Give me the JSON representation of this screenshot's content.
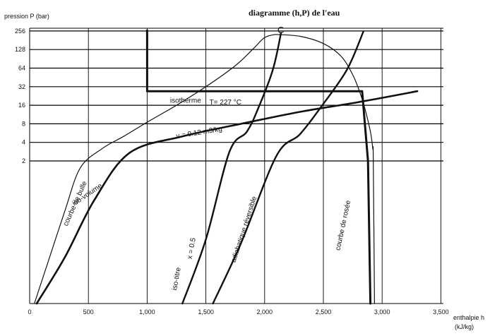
{
  "chart_data": {
    "type": "line",
    "title": "diagramme (h,P) de l'eau",
    "xlabel": "enthalpie  h",
    "xunit": "(kJ/kg)",
    "ylabel": "pression  P (bar)",
    "xlim": [
      0,
      3700
    ],
    "x_ticks": [
      0,
      500,
      1000,
      1500,
      2000,
      2500,
      3000,
      3500
    ],
    "x_tick_labels": [
      "0",
      "500",
      "1,000",
      "1,500",
      "2,000",
      "2,500",
      "3,000",
      "3,500"
    ],
    "y_scale": "log2 above 2 bar; lower part of figure unlabelled",
    "y_ticks": [
      2,
      4,
      8,
      16,
      32,
      64,
      128,
      256
    ],
    "y_tick_labels": [
      "2",
      "4",
      "8",
      "16",
      "32",
      "64",
      "128",
      "256"
    ],
    "grid": true,
    "critical_point_label": "C",
    "series": [
      {
        "name": "courbe de bulle",
        "points": [
          [
            40,
            0
          ],
          [
            150,
            0.55
          ],
          [
            300,
            1.3
          ],
          [
            430,
            1.9
          ],
          [
            620,
            3.2
          ],
          [
            800,
            5
          ],
          [
            1000,
            8.5
          ],
          [
            1250,
            16
          ],
          [
            1500,
            32
          ],
          [
            1750,
            70
          ],
          [
            1900,
            130
          ],
          [
            2000,
            200
          ],
          [
            2090,
            225
          ]
        ],
        "labels": [
          {
            "text": "courbe de bulle",
            "x": 320,
            "y": 1.08,
            "angle": -66
          }
        ]
      },
      {
        "name": "courbe de rosée",
        "points": [
          [
            2090,
            225
          ],
          [
            2300,
            210
          ],
          [
            2500,
            160
          ],
          [
            2650,
            100
          ],
          [
            2750,
            50
          ],
          [
            2810,
            26
          ],
          [
            2850,
            15
          ],
          [
            2900,
            6
          ],
          [
            2920,
            3.2
          ],
          [
            2925,
            2
          ],
          [
            2935,
            0
          ]
        ],
        "labels": [
          {
            "text": "courbe de rosée",
            "x": 2640,
            "y": 0.74,
            "angle": -78
          }
        ]
      },
      {
        "name": "iso-volume",
        "points": [
          [
            60,
            0
          ],
          [
            300,
            0.65
          ],
          [
            550,
            1.45
          ],
          [
            850,
            2.7
          ],
          [
            1300,
            5
          ],
          [
            1800,
            8
          ],
          [
            2300,
            12.5
          ],
          [
            2800,
            18
          ],
          [
            3300,
            27
          ]
        ],
        "labels": [
          {
            "text": "iso-volume",
            "x": 380,
            "y": 1.37,
            "angle": -34
          },
          {
            "text": "v = 0.12 m3/kg",
            "x": 1250,
            "y": 4.66,
            "angle": -9
          }
        ]
      },
      {
        "name": "isotherme",
        "points": [
          [
            1000,
            260
          ],
          [
            1000,
            27
          ],
          [
            2830,
            27
          ],
          [
            2880,
            2
          ],
          [
            2900,
            0
          ]
        ],
        "labels": [
          {
            "text": "isotherme",
            "x": 1195,
            "y": 17.5,
            "angle": 0
          },
          {
            "text": "T= 227 °C",
            "x": 1530,
            "y": 16.5,
            "angle": 0
          }
        ]
      },
      {
        "name": "iso-titre",
        "points": [
          [
            1300,
            0
          ],
          [
            1500,
            0.9
          ],
          [
            1700,
            2.8
          ],
          [
            1850,
            6
          ],
          [
            1950,
            15
          ],
          [
            2070,
            60
          ],
          [
            2140,
            240
          ]
        ],
        "labels": [
          {
            "text": "iso-titre",
            "x": 1250,
            "y": 0.18,
            "angle": -80
          },
          {
            "text": "x = 0.5",
            "x": 1380,
            "y": 0.62,
            "angle": -80
          }
        ]
      },
      {
        "name": "adiabatique réversible",
        "points": [
          [
            1560,
            0
          ],
          [
            1800,
            0.85
          ],
          [
            2100,
            2.4
          ],
          [
            2300,
            5.4
          ],
          [
            2480,
            15
          ],
          [
            2700,
            60
          ],
          [
            2840,
            250
          ]
        ],
        "labels": [
          {
            "text": "adiabatique réversible",
            "x": 1750,
            "y": 0.57,
            "angle": -72
          }
        ]
      }
    ]
  }
}
